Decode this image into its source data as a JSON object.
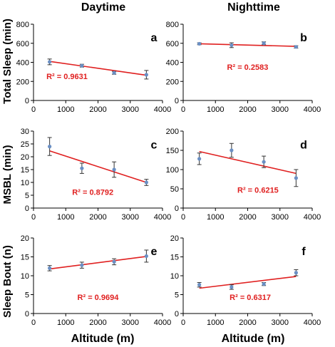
{
  "headers": {
    "left": "Daytime",
    "right": "Nighttime"
  },
  "ylabels": {
    "row1": "Total Sleep (min)",
    "row2": "MSBL (min)",
    "row3": "Sleep Bout (n)"
  },
  "xlabel": "Altitude (m)",
  "colors": {
    "trend": "#e02020",
    "point": "#6a8fc4",
    "axis": "#000000",
    "r2": "#e02020"
  },
  "chart_data": [
    {
      "id": "a",
      "type": "scatter",
      "letter": "a",
      "r2": "R² = 0.9631",
      "x": [
        500,
        1500,
        2500,
        3500
      ],
      "y": [
        405,
        365,
        290,
        270
      ],
      "err": [
        30,
        15,
        15,
        45
      ],
      "trend": [
        [
          500,
          410
        ],
        [
          3500,
          265
        ]
      ],
      "xlim": [
        0,
        4000
      ],
      "ylim": [
        0,
        800
      ],
      "xticks": [
        0,
        1000,
        2000,
        3000,
        4000
      ],
      "yticks": [
        0,
        200,
        400,
        600,
        800
      ]
    },
    {
      "id": "b",
      "type": "scatter",
      "letter": "b",
      "r2": "R² = 0.2583",
      "x": [
        500,
        1500,
        2500,
        3500
      ],
      "y": [
        595,
        580,
        600,
        562
      ],
      "err": [
        10,
        25,
        15,
        12
      ],
      "trend": [
        [
          500,
          595
        ],
        [
          3500,
          568
        ]
      ],
      "xlim": [
        0,
        4000
      ],
      "ylim": [
        0,
        800
      ],
      "xticks": [
        0,
        1000,
        2000,
        3000,
        4000
      ],
      "yticks": [
        0,
        200,
        400,
        600,
        800
      ]
    },
    {
      "id": "c",
      "type": "scatter",
      "letter": "c",
      "r2": "R² = 0.8792",
      "x": [
        500,
        1500,
        2500,
        3500
      ],
      "y": [
        24,
        15.5,
        15,
        10
      ],
      "err": [
        3.5,
        2,
        3,
        1.2
      ],
      "trend": [
        [
          500,
          22.3
        ],
        [
          3500,
          10
        ]
      ],
      "xlim": [
        0,
        4000
      ],
      "ylim": [
        0,
        30
      ],
      "xticks": [
        0,
        1000,
        2000,
        3000,
        4000
      ],
      "yticks": [
        0,
        5,
        10,
        15,
        20,
        25,
        30
      ]
    },
    {
      "id": "d",
      "type": "scatter",
      "letter": "d",
      "r2": "R² = 0.6215",
      "x": [
        500,
        1500,
        2500,
        3500
      ],
      "y": [
        128,
        150,
        120,
        78
      ],
      "err": [
        15,
        18,
        15,
        22
      ],
      "trend": [
        [
          500,
          147
        ],
        [
          3500,
          90
        ]
      ],
      "xlim": [
        0,
        4000
      ],
      "ylim": [
        0,
        200
      ],
      "xticks": [
        0,
        1000,
        2000,
        3000,
        4000
      ],
      "yticks": [
        0,
        50,
        100,
        150,
        200
      ]
    },
    {
      "id": "e",
      "type": "scatter",
      "letter": "e",
      "r2": "R² = 0.9694",
      "x": [
        500,
        1500,
        2500,
        3500
      ],
      "y": [
        12,
        12.8,
        13.7,
        15.2
      ],
      "err": [
        0.7,
        0.8,
        0.8,
        1.6
      ],
      "trend": [
        [
          500,
          11.8
        ],
        [
          3500,
          15.1
        ]
      ],
      "xlim": [
        0,
        4000
      ],
      "ylim": [
        0,
        20
      ],
      "xticks": [
        0,
        1000,
        2000,
        3000,
        4000
      ],
      "yticks": [
        0,
        5,
        10,
        15,
        20
      ]
    },
    {
      "id": "f",
      "type": "scatter",
      "letter": "f",
      "r2": "R² = 0.6317",
      "x": [
        500,
        1500,
        2500,
        3500
      ],
      "y": [
        7.6,
        7.0,
        7.8,
        10.8
      ],
      "err": [
        0.6,
        0.6,
        0.4,
        0.8
      ],
      "trend": [
        [
          500,
          6.7
        ],
        [
          3500,
          9.8
        ]
      ],
      "xlim": [
        0,
        4000
      ],
      "ylim": [
        0,
        20
      ],
      "xticks": [
        0,
        1000,
        2000,
        3000,
        4000
      ],
      "yticks": [
        0,
        5,
        10,
        15,
        20
      ]
    }
  ]
}
